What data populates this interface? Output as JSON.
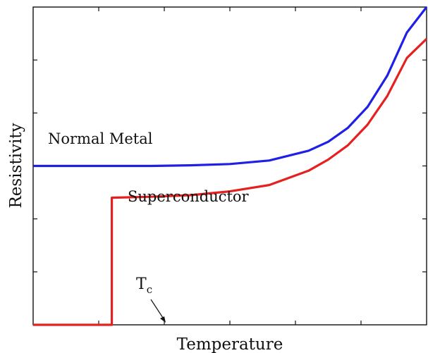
{
  "chart_data": {
    "type": "line",
    "xlabel": "Temperature",
    "ylabel": "Resistivity",
    "xlim": [
      0,
      10
    ],
    "ylim": [
      0,
      10
    ],
    "grid": false,
    "legend": "none",
    "series": [
      {
        "name": "Normal Metal",
        "color": "#1f1fe6",
        "x": [
          0,
          1,
          2,
          3,
          4,
          5,
          6,
          7,
          7.5,
          8,
          8.5,
          9,
          9.5,
          10
        ],
        "y": [
          5.0,
          5.0,
          5.0,
          5.0,
          5.02,
          5.06,
          5.17,
          5.48,
          5.76,
          6.2,
          6.86,
          7.84,
          9.2,
          10.0
        ]
      },
      {
        "name": "Superconductor",
        "color": "#e61f1f",
        "x": [
          0,
          1,
          2,
          2.0,
          2.0,
          3,
          4,
          5,
          6,
          7,
          7.5,
          8,
          8.5,
          9,
          9.5,
          10
        ],
        "y": [
          0,
          0,
          0,
          0,
          4.0,
          4.03,
          4.08,
          4.2,
          4.4,
          4.85,
          5.2,
          5.65,
          6.3,
          7.2,
          8.4,
          9.0
        ]
      }
    ],
    "annotations": [
      {
        "text": "Normal Metal",
        "at_x": 0.3,
        "at_y": 5.0
      },
      {
        "text": "Superconductor",
        "at_x": 1.45,
        "at_y": 4.0
      },
      {
        "text": "T",
        "subscript": "c",
        "at_x": 2.0,
        "at_y": 0
      }
    ]
  }
}
